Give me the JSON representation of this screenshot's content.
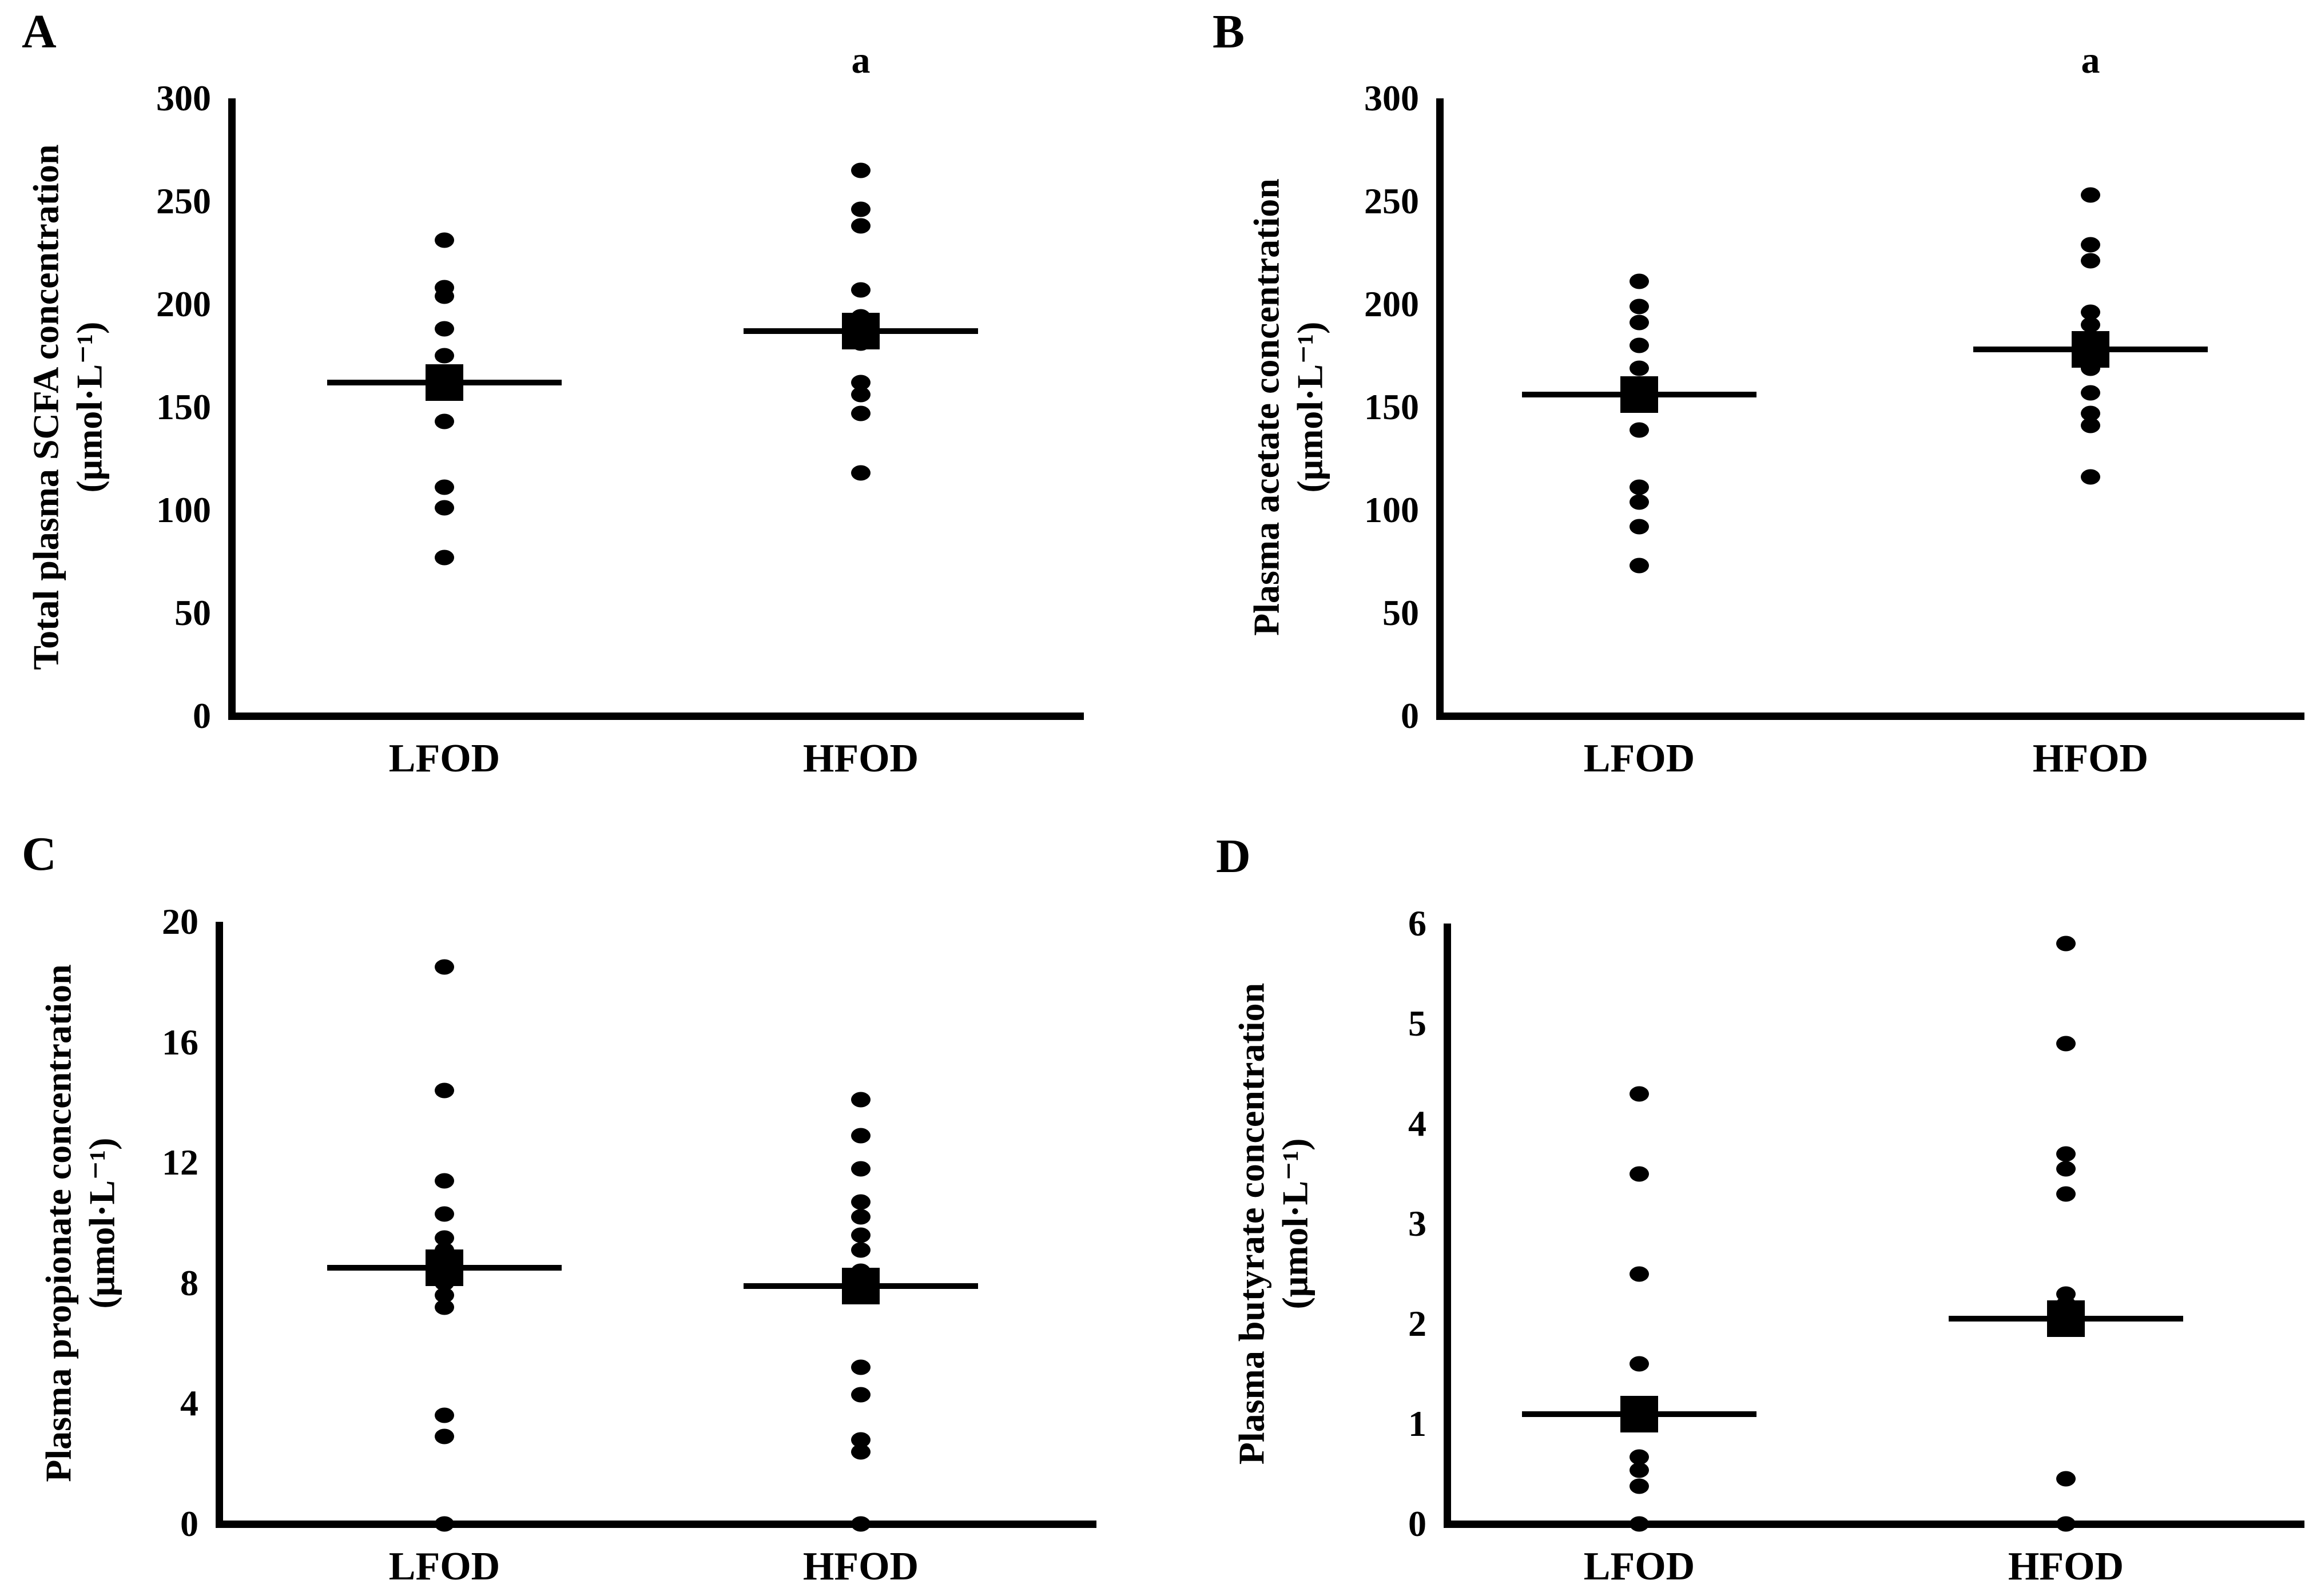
{
  "figure": {
    "background_color": "#ffffff",
    "ink_color": "#000000",
    "groups_order": [
      "LFOD",
      "HFOD"
    ]
  },
  "chart_data": [
    {
      "type": "scatter",
      "panel": "A",
      "ylabel": "Total plasma SCFA concentration",
      "yunits": "(μmol·L⁻¹)",
      "ylim": [
        0,
        300
      ],
      "yticks": [
        300,
        250,
        200,
        150,
        100,
        50,
        0
      ],
      "categories": [
        "LFOD",
        "HFOD"
      ],
      "series": [
        {
          "name": "LFOD",
          "values": [
            231,
            208,
            204,
            188,
            175,
            167,
            143,
            111,
            101,
            77
          ],
          "mean": 162,
          "annotation": null
        },
        {
          "name": "HFOD",
          "values": [
            265,
            246,
            238,
            207,
            194,
            181,
            162,
            156,
            147,
            118
          ],
          "mean": 187,
          "annotation": "a"
        }
      ]
    },
    {
      "type": "scatter",
      "panel": "B",
      "ylabel": "Plasma acetate concentration",
      "yunits": "(μmol·L⁻¹)",
      "ylim": [
        0,
        300
      ],
      "yticks": [
        300,
        250,
        200,
        150,
        100,
        50,
        0
      ],
      "categories": [
        "LFOD",
        "HFOD"
      ],
      "series": [
        {
          "name": "LFOD",
          "values": [
            211,
            199,
            191,
            180,
            169,
            158,
            139,
            111,
            104,
            92,
            73
          ],
          "mean": 156,
          "annotation": null
        },
        {
          "name": "HFOD",
          "values": [
            253,
            229,
            221,
            196,
            190,
            181,
            169,
            157,
            147,
            141,
            116
          ],
          "mean": 178,
          "annotation": "a"
        }
      ]
    },
    {
      "type": "scatter",
      "panel": "C",
      "ylabel": "Plasma propionate concentration",
      "yunits": "(μmol·L⁻¹)",
      "ylim": [
        0,
        20
      ],
      "yticks": [
        20,
        16,
        12,
        8,
        4,
        0
      ],
      "categories": [
        "LFOD",
        "HFOD"
      ],
      "series": [
        {
          "name": "LFOD",
          "values": [
            18.5,
            14.4,
            11.4,
            10.3,
            9.5,
            9.1,
            8.7,
            8.0,
            7.6,
            7.2,
            3.6,
            2.9,
            0
          ],
          "mean": 8.5,
          "annotation": null
        },
        {
          "name": "HFOD",
          "values": [
            14.1,
            12.9,
            11.8,
            10.7,
            10.2,
            9.6,
            9.1,
            8.4,
            5.2,
            4.3,
            2.8,
            2.4,
            0
          ],
          "mean": 7.9,
          "annotation": null
        }
      ]
    },
    {
      "type": "scatter",
      "panel": "D",
      "ylabel": "Plasma butyrate concentration",
      "yunits": "(μmol·L⁻¹)",
      "ylim": [
        0,
        6
      ],
      "yticks": [
        6,
        5,
        4,
        3,
        2,
        1,
        0
      ],
      "categories": [
        "LFOD",
        "HFOD"
      ],
      "series": [
        {
          "name": "LFOD",
          "values": [
            4.3,
            3.5,
            2.5,
            1.6,
            0.67,
            0.54,
            0.38,
            0
          ],
          "mean": 1.1,
          "annotation": null
        },
        {
          "name": "HFOD",
          "values": [
            5.8,
            4.8,
            3.7,
            3.55,
            3.3,
            2.3,
            2.2,
            0.45,
            0
          ],
          "mean": 2.05,
          "annotation": null
        }
      ]
    }
  ]
}
